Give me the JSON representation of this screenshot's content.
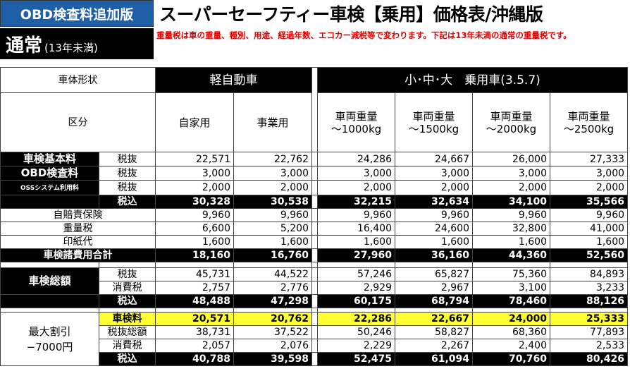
{
  "header": {
    "badge": "OBD検査料追加版",
    "title": "スーパーセーフティー車検【乗用】価格表/沖縄版",
    "normal_big": "通常",
    "normal_small": "(13年未満)",
    "note": "重量税は車の重量、種別、用途、経過年数、エコカー減税等で変わります。下記は13年未満の通常の重量税です。"
  },
  "categories": {
    "body_type": "車体形状",
    "kei": "軽自動車",
    "passenger": "小･中･大　乗用車(3.5.7)",
    "division": "区分"
  },
  "columns": [
    "自家用",
    "事業用",
    "車両重量\n～1000kg",
    "車両重量\n～1500kg",
    "車両重量\n～2000kg",
    "車両重量\n～2500kg"
  ],
  "rows": {
    "shaken_kihon": {
      "label": "車検基本料",
      "sub": "税抜",
      "values": [
        "22,571",
        "22,762",
        "24,286",
        "24,667",
        "26,000",
        "27,333"
      ]
    },
    "obd": {
      "label": "OBD検査料",
      "sub": "税抜",
      "values": [
        "3,000",
        "3,000",
        "3,000",
        "3,000",
        "3,000",
        "3,000"
      ]
    },
    "oss": {
      "label": "OSSシステム利用料",
      "sub": "税抜",
      "values": [
        "2,000",
        "2,000",
        "2,000",
        "2,000",
        "2,000",
        "2,000"
      ]
    },
    "zeikomi1": {
      "label": "税込",
      "values": [
        "30,328",
        "30,538",
        "32,215",
        "32,634",
        "34,100",
        "35,566"
      ]
    },
    "jibaiseki": {
      "label": "自賠責保険",
      "values": [
        "9,960",
        "9,960",
        "9,960",
        "9,960",
        "9,960",
        "9,960"
      ]
    },
    "juryozei": {
      "label": "重量税",
      "values": [
        "6,600",
        "5,200",
        "16,400",
        "24,600",
        "32,800",
        "41,000"
      ]
    },
    "inshi": {
      "label": "印紙代",
      "values": [
        "1,600",
        "1,600",
        "1,600",
        "1,600",
        "1,600",
        "1,600"
      ]
    },
    "shohiyo": {
      "label": "車検諸費用合計",
      "values": [
        "18,160",
        "16,760",
        "27,960",
        "36,160",
        "44,360",
        "52,560"
      ]
    },
    "sogaku_label": "車検総額",
    "sogaku_zeinuki": {
      "label": "税抜",
      "values": [
        "45,731",
        "44,522",
        "57,246",
        "65,827",
        "75,360",
        "84,893"
      ]
    },
    "sogaku_shohizei": {
      "label": "消費税",
      "values": [
        "2,757",
        "2,776",
        "2,929",
        "2,967",
        "3,100",
        "3,233"
      ]
    },
    "sogaku_zeikomi": {
      "label": "税込",
      "values": [
        "48,488",
        "47,298",
        "60,175",
        "68,794",
        "78,460",
        "88,126"
      ]
    },
    "discount_label_1": "最大割引",
    "discount_label_2": "−7000円",
    "d_shakenryo": {
      "label": "車検料",
      "values": [
        "20,571",
        "20,762",
        "22,286",
        "22,667",
        "24,000",
        "25,333"
      ]
    },
    "d_zeinuki": {
      "label": "税抜総額",
      "values": [
        "38,731",
        "37,522",
        "50,246",
        "58,827",
        "68,360",
        "77,893"
      ]
    },
    "d_shohizei": {
      "label": "消費税",
      "values": [
        "2,057",
        "2,076",
        "2,229",
        "2,267",
        "2,400",
        "2,533"
      ]
    },
    "d_zeikomi": {
      "label": "税込",
      "values": [
        "40,788",
        "39,598",
        "52,475",
        "61,094",
        "70,760",
        "80,426"
      ]
    }
  }
}
